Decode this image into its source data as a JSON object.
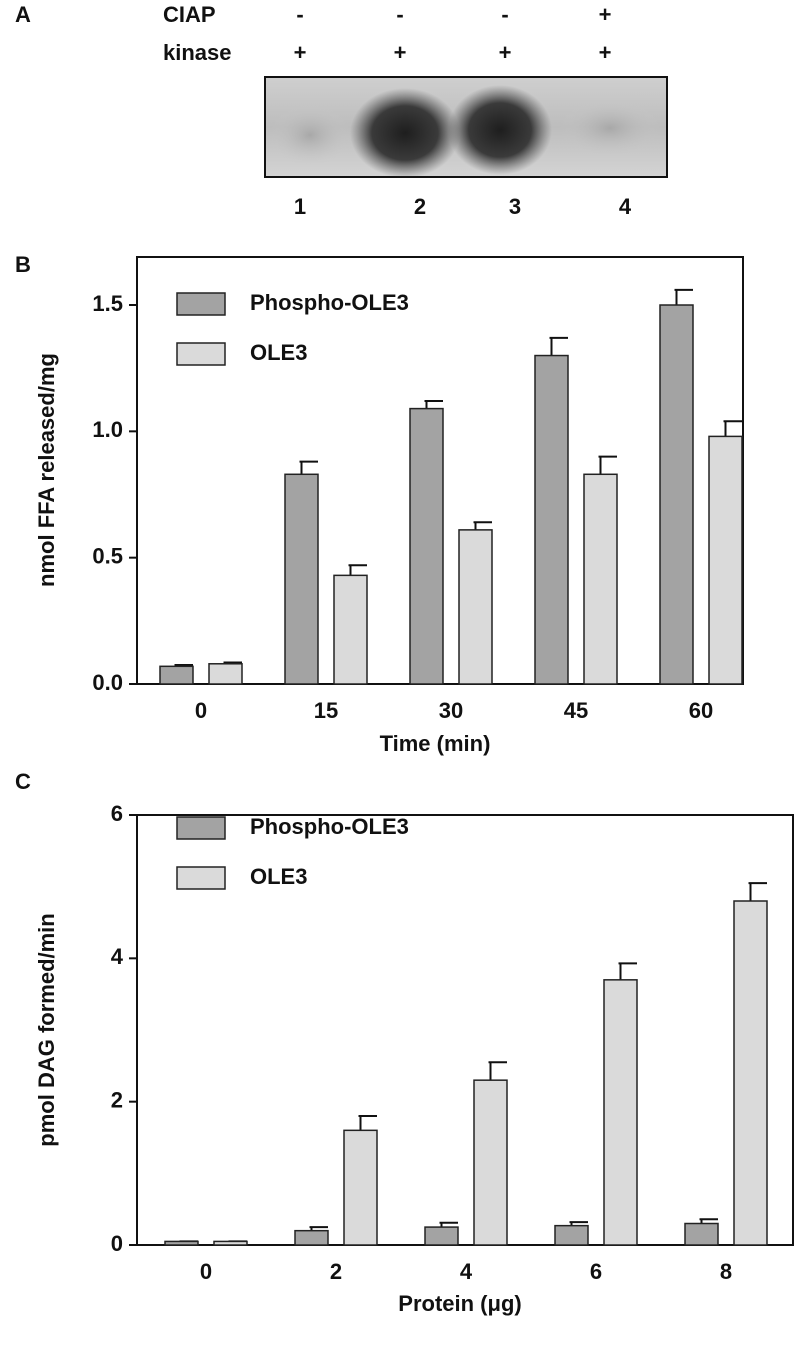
{
  "gel": {
    "panel_label": "A",
    "rows": [
      {
        "label": "CIAP",
        "marks": [
          "-",
          "-",
          "-",
          "+"
        ]
      },
      {
        "label": "kinase",
        "marks": [
          "+",
          "+",
          "+",
          "+"
        ]
      }
    ],
    "lanes": [
      "1",
      "2",
      "3",
      "4"
    ]
  },
  "chart_data": [
    {
      "type": "bar",
      "panel_label": "B",
      "x_label": "Time (min)",
      "y_label": "nmol FFA released/mg",
      "categories": [
        "0",
        "15",
        "30",
        "45",
        "60"
      ],
      "series": [
        {
          "name": "Phospho-OLE3",
          "color": "#a3a3a3",
          "values": [
            0.07,
            0.83,
            1.09,
            1.3,
            1.5
          ],
          "errors": [
            0.005,
            0.05,
            0.03,
            0.07,
            0.06
          ]
        },
        {
          "name": "OLE3",
          "color": "#dadada",
          "values": [
            0.08,
            0.43,
            0.61,
            0.83,
            0.98
          ],
          "errors": [
            0.005,
            0.04,
            0.03,
            0.07,
            0.06
          ]
        }
      ],
      "ylim": [
        0,
        1.69
      ],
      "yticks": [
        {
          "value": 0,
          "label": "0.0"
        },
        0.5,
        {
          "value": 1,
          "label": "1.0"
        },
        1.5
      ],
      "legend": "upper left"
    },
    {
      "type": "bar",
      "panel_label": "C",
      "x_label": "Protein (μg)",
      "y_label": "pmol DAG formed/min",
      "categories": [
        "0",
        "2",
        "4",
        "6",
        "8"
      ],
      "series": [
        {
          "name": "Phospho-OLE3",
          "color": "#a3a3a3",
          "values": [
            0.05,
            0.2,
            0.25,
            0.27,
            0.3
          ],
          "errors": [
            0,
            0.05,
            0.06,
            0.05,
            0.06
          ]
        },
        {
          "name": "OLE3",
          "color": "#dadada",
          "values": [
            0.05,
            1.6,
            2.3,
            3.7,
            4.8
          ],
          "errors": [
            0,
            0.2,
            0.25,
            0.23,
            0.25
          ]
        }
      ],
      "ylim": [
        0,
        6
      ],
      "yticks": [
        0,
        2,
        4,
        6
      ],
      "legend": "upper left"
    }
  ]
}
